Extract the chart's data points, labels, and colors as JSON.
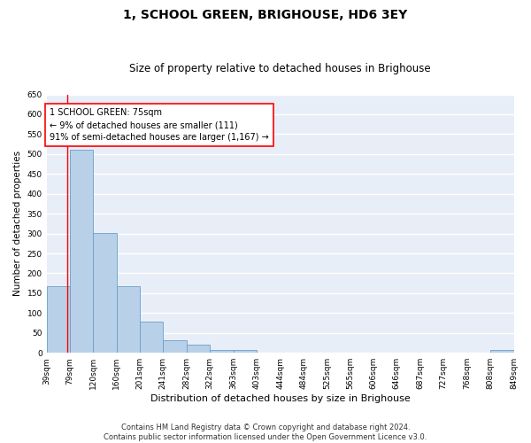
{
  "title": "1, SCHOOL GREEN, BRIGHOUSE, HD6 3EY",
  "subtitle": "Size of property relative to detached houses in Brighouse",
  "xlabel": "Distribution of detached houses by size in Brighouse",
  "ylabel": "Number of detached properties",
  "bar_color": "#b8d0e8",
  "bar_edge_color": "#6a9fc8",
  "bg_color": "#e8eef8",
  "grid_color": "white",
  "annotation_line_color": "red",
  "annotation_box_color": "red",
  "annotation_text": "1 SCHOOL GREEN: 75sqm\n← 9% of detached houses are smaller (111)\n91% of semi-detached houses are larger (1,167) →",
  "property_size": 75,
  "bins": [
    39,
    79,
    120,
    160,
    201,
    241,
    282,
    322,
    363,
    403,
    444,
    484,
    525,
    565,
    606,
    646,
    687,
    727,
    768,
    808,
    849
  ],
  "counts": [
    168,
    510,
    301,
    168,
    78,
    31,
    20,
    7,
    7,
    0,
    0,
    0,
    0,
    0,
    0,
    0,
    0,
    0,
    0,
    8
  ],
  "ylim": [
    0,
    650
  ],
  "yticks": [
    0,
    50,
    100,
    150,
    200,
    250,
    300,
    350,
    400,
    450,
    500,
    550,
    600,
    650
  ],
  "footnote": "Contains HM Land Registry data © Crown copyright and database right 2024.\nContains public sector information licensed under the Open Government Licence v3.0.",
  "title_fontsize": 10,
  "subtitle_fontsize": 8.5,
  "xlabel_fontsize": 8,
  "ylabel_fontsize": 7.5,
  "tick_fontsize": 6.5,
  "annot_fontsize": 7,
  "footnote_fontsize": 6
}
